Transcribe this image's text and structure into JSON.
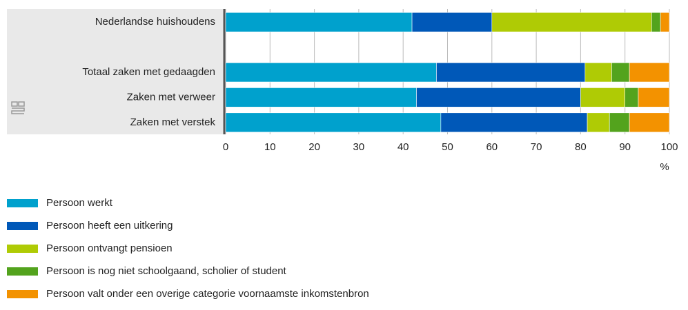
{
  "chart_data": {
    "type": "stacked-barh",
    "categories": [
      "Nederlandse huishoudens",
      null,
      "Totaal zaken met gedaagden",
      "Zaken met verweer",
      "Zaken met verstek"
    ],
    "series": [
      {
        "name": "Persoon werkt",
        "color": "#00a1cd",
        "values": [
          42,
          null,
          47.5,
          43,
          48.5
        ]
      },
      {
        "name": "Persoon heeft een uitkering",
        "color": "#0058b8",
        "values": [
          18,
          null,
          33.5,
          37,
          33
        ]
      },
      {
        "name": "Persoon ontvangt pensioen",
        "color": "#afcb05",
        "values": [
          36,
          null,
          6,
          10,
          5
        ]
      },
      {
        "name": "Persoon is nog niet schoolgaand, scholier of student",
        "color": "#53a31d",
        "values": [
          2,
          null,
          4,
          3,
          4.5
        ]
      },
      {
        "name": "Persoon valt onder een overige categorie voornaamste inkomstenbron",
        "color": "#f39200",
        "values": [
          2,
          null,
          9,
          7,
          9
        ]
      }
    ],
    "xlabel": "%",
    "xlim": [
      0,
      100
    ],
    "xticks": [
      0,
      10,
      20,
      30,
      40,
      50,
      60,
      70,
      80,
      90,
      100
    ],
    "grid": true
  }
}
